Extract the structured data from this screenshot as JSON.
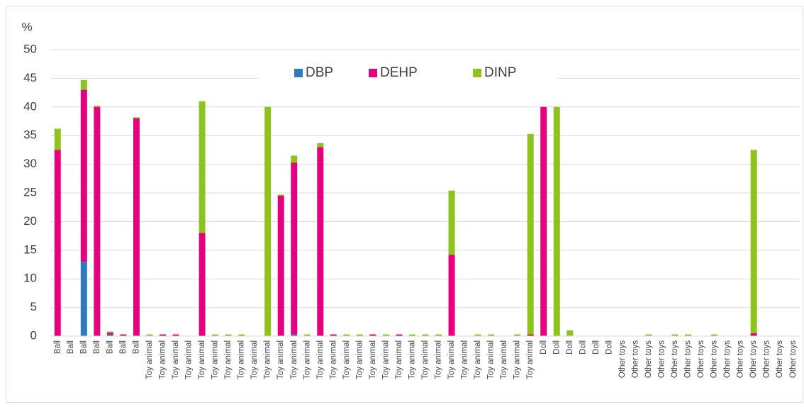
{
  "chart_data": {
    "type": "stacked_bar",
    "y_label": "%",
    "categories": [
      "Ball",
      "Ball",
      "Ball",
      "Ball",
      "Ball",
      "Ball",
      "Ball",
      "Toy animal",
      "Toy animal",
      "Toy animal",
      "Toy animal",
      "Toy animal",
      "Toy animal",
      "Toy animal",
      "Toy animal",
      "Toy animal",
      "Toy animal",
      "Toy animal",
      "Toy animal",
      "Toy animal",
      "Toy animal",
      "Toy animal",
      "Toy animal",
      "Toy animal",
      "Toy animal",
      "Toy animal",
      "Toy animal",
      "Toy animal",
      "Toy animal",
      "Toy animal",
      "Toy animal",
      "Toy animal",
      "Toy animal",
      "Toy animal",
      "Toy animal",
      "Toy animal",
      "Toy animal",
      "Doll",
      "Doll",
      "Doll",
      "Doll",
      "Doll",
      "Doll",
      "Other toys",
      "Other toys",
      "Other toys",
      "Other toys",
      "Other toys",
      "Other toys",
      "Other toys",
      "Other toys",
      "Other toys",
      "Other toys",
      "Other toys",
      "Other toys",
      "Other toys",
      "Other toys"
    ],
    "series": [
      {
        "name": "DBP",
        "color": "#2e7bc4",
        "values": [
          0,
          0,
          13,
          0,
          0.3,
          0,
          0,
          0,
          0,
          0,
          0,
          0,
          0,
          0,
          0,
          0,
          0,
          0,
          0.3,
          0,
          0,
          0,
          0,
          0,
          0,
          0,
          0,
          0,
          0,
          0,
          0,
          0,
          0,
          0,
          0,
          0,
          0,
          0,
          0,
          0,
          0,
          0,
          0,
          0,
          0,
          0,
          0,
          0,
          0,
          0,
          0,
          0,
          0,
          0,
          0,
          0,
          0
        ]
      },
      {
        "name": "DEHP",
        "color": "#e5007d",
        "values": [
          32.5,
          0,
          30,
          40,
          0.3,
          0.3,
          38,
          0,
          0.3,
          0.3,
          0,
          18,
          0,
          0,
          0,
          0,
          0,
          24.5,
          30,
          0,
          33,
          0.3,
          0,
          0,
          0.3,
          0,
          0.3,
          0,
          0,
          0,
          14.2,
          0,
          0,
          0,
          0,
          0,
          0.3,
          40,
          0,
          0,
          0,
          0,
          0,
          0,
          0,
          0,
          0,
          0,
          0,
          0,
          0,
          0,
          0,
          0.5,
          0,
          0,
          0
        ]
      },
      {
        "name": "DINP",
        "color": "#8dc21f",
        "values": [
          3.7,
          0,
          1.7,
          0.2,
          0.2,
          0,
          0.2,
          0.3,
          0,
          0,
          0,
          23,
          0.3,
          0.3,
          0.3,
          0,
          40,
          0.2,
          1.2,
          0.3,
          0.7,
          0,
          0.3,
          0.3,
          0,
          0.3,
          0,
          0.3,
          0.3,
          0.3,
          11.2,
          0,
          0.3,
          0.3,
          0,
          0.3,
          35,
          0,
          40,
          1,
          0,
          0,
          0,
          0,
          0,
          0.3,
          0,
          0.3,
          0.3,
          0,
          0.3,
          0,
          0,
          32,
          0,
          0,
          0
        ]
      }
    ],
    "ylim": [
      0,
      50
    ],
    "yticks": [
      0,
      5,
      10,
      15,
      20,
      25,
      30,
      35,
      40,
      45,
      50
    ],
    "grid": true,
    "legend": "top"
  }
}
